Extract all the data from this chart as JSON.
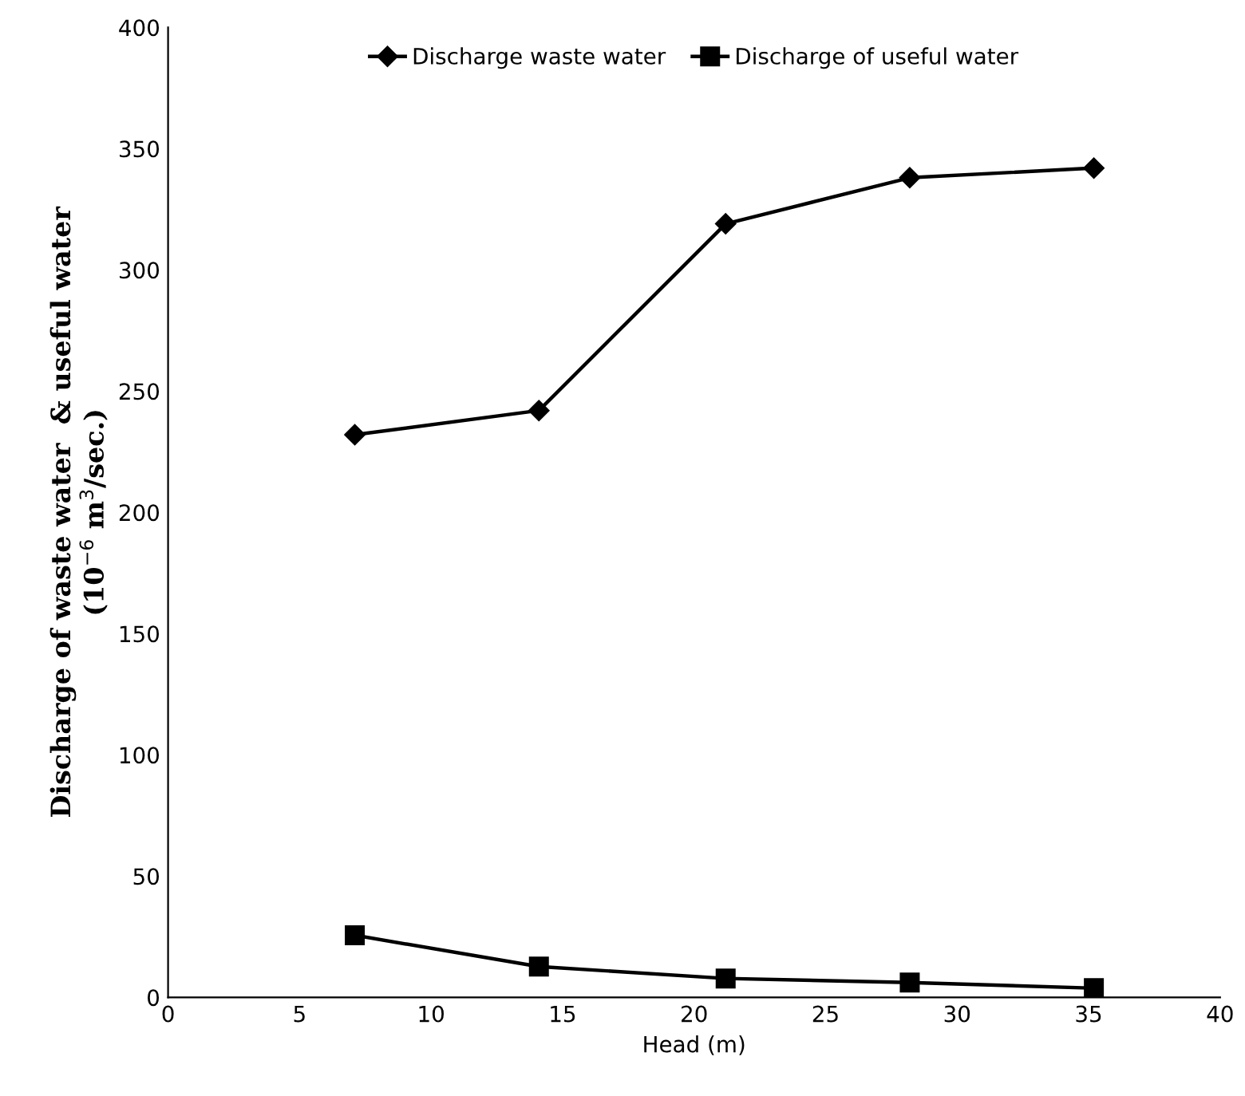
{
  "chart_data": {
    "type": "line",
    "xlabel": "Head (m)",
    "ylabel": "Discharge of waste water  & useful water\n(10$^{−6}$ m$^{3}$/sec.)",
    "x": [
      7.1,
      14.1,
      21.2,
      28.2,
      35.2
    ],
    "series": [
      {
        "name": "Discharge waste water",
        "color": "#000000",
        "marker": "diamond",
        "values": [
          232,
          242,
          319,
          338,
          342
        ]
      },
      {
        "name": "Discharge of useful water",
        "color": "#000000",
        "marker": "square",
        "values": [
          25.6,
          12.7,
          7.8,
          6.1,
          3.8
        ]
      }
    ],
    "xlim": [
      0,
      40
    ],
    "xticks": [
      0,
      5,
      10,
      15,
      20,
      25,
      30,
      35,
      40
    ],
    "ylim": [
      0,
      400
    ],
    "yticks": [
      0,
      50,
      100,
      150,
      200,
      250,
      300,
      350,
      400
    ],
    "grid": false,
    "legend": "top",
    "line_style": "solid"
  }
}
